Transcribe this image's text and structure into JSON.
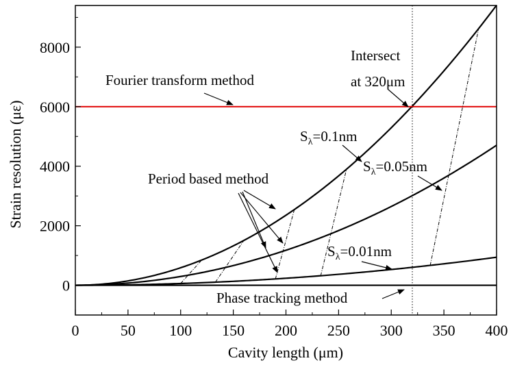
{
  "chart_data": {
    "type": "line",
    "title": "",
    "xlabel": "Cavity length (μm)",
    "ylabel": "Strain resolution (με)",
    "xlim": [
      0,
      400
    ],
    "ylim": [
      -1000,
      9400
    ],
    "xticks": [
      0,
      50,
      100,
      150,
      200,
      250,
      300,
      350,
      400
    ],
    "yticks": [
      0,
      2000,
      4000,
      6000,
      8000
    ],
    "grid": false,
    "line_colors": {
      "fourier": "#e00000",
      "curves": "#000000"
    },
    "series": [
      {
        "id": "s01",
        "coef": 0.0588,
        "x": [
          0,
          50,
          100,
          150,
          200,
          250,
          300,
          350,
          400
        ],
        "values": [
          0,
          147,
          588,
          1323,
          2352,
          3675,
          5292,
          7203,
          9408
        ]
      },
      {
        "id": "s005",
        "coef": 0.0294,
        "x": [
          0,
          50,
          100,
          150,
          200,
          250,
          300,
          350,
          400
        ],
        "values": [
          0,
          74,
          294,
          662,
          1176,
          1838,
          2646,
          3602,
          4704
        ]
      },
      {
        "id": "s001",
        "coef": 0.00588,
        "x": [
          0,
          50,
          100,
          150,
          200,
          250,
          300,
          350,
          400
        ],
        "values": [
          0,
          15,
          59,
          132,
          235,
          368,
          529,
          720,
          941
        ]
      },
      {
        "id": "phase",
        "x": [
          0,
          400
        ],
        "values": [
          0,
          0
        ]
      },
      {
        "id": "fourier",
        "x": [
          0,
          400
        ],
        "values": [
          6000,
          6000
        ]
      }
    ],
    "period_based_segments": [
      {
        "x1": 100,
        "y1": 59,
        "x2": 120,
        "y2": 847
      },
      {
        "x1": 133,
        "y1": 104,
        "x2": 160,
        "y2": 1505
      },
      {
        "x1": 190,
        "y1": 212,
        "x2": 208,
        "y2": 2544
      },
      {
        "x1": 233,
        "y1": 319,
        "x2": 257.5,
        "y2": 3899
      },
      {
        "x1": 337,
        "y1": 668,
        "x2": 383,
        "y2": 8625
      }
    ],
    "intersect_point": {
      "x": 320,
      "y": 6000
    },
    "annotations": {
      "fourier": "Fourier transform method",
      "intersect_line1": "Intersect",
      "intersect_line2": "at 320μm",
      "period": "Period based  method",
      "phase": "Phase tracking method",
      "s_prefix": "S",
      "s_sub": "λ",
      "s01_value": "=0.1nm",
      "s005_value": "=0.05nm",
      "s001_value": "=0.01nm"
    }
  }
}
